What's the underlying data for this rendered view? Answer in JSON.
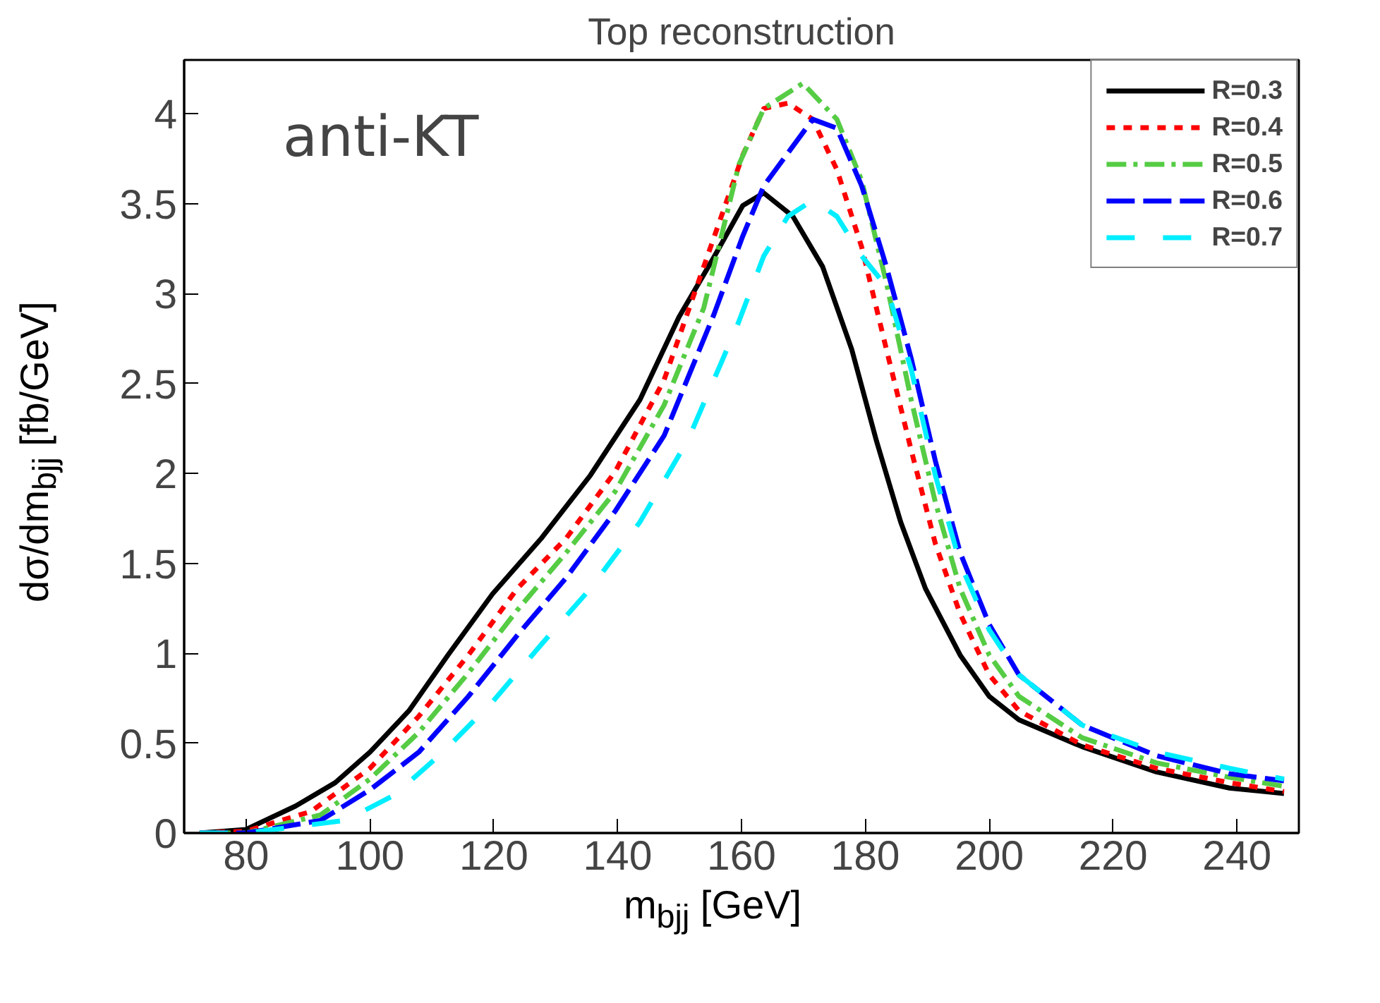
{
  "chart_data": {
    "type": "line",
    "title": "Top reconstruction",
    "xlabel": "m$_{bjj}$ [GeV]",
    "ylabel": "dσ/dm$_{bjj}$ [fb/GeV]",
    "annotations": [
      "anti-KT"
    ],
    "xlim": [
      70,
      250
    ],
    "ylim": [
      0,
      4.3
    ],
    "xticks": [
      80,
      100,
      120,
      140,
      160,
      180,
      200,
      220,
      240
    ],
    "yticks": [
      0,
      0.5,
      1,
      1.5,
      2,
      2.5,
      3,
      3.5,
      4
    ],
    "grid": false,
    "legend": "top right",
    "marker": "none",
    "series": [
      {
        "name": "R=0.3",
        "color": "#000000",
        "line_style": "solid",
        "x": [
          72.5,
          80,
          88,
          94.4,
          100,
          106.3,
          112.6,
          119.8,
          127.7,
          135.6,
          143.6,
          149.9,
          155.5,
          160.2,
          163.6,
          168.3,
          173.1,
          177.8,
          181.8,
          185.7,
          189.7,
          195.3,
          200,
          204.8,
          215,
          227,
          238.8,
          247.6
        ],
        "values": [
          0,
          0.02,
          0.15,
          0.28,
          0.45,
          0.68,
          0.99,
          1.33,
          1.64,
          1.99,
          2.41,
          2.87,
          3.2,
          3.49,
          3.56,
          3.43,
          3.15,
          2.69,
          2.18,
          1.73,
          1.36,
          0.99,
          0.76,
          0.63,
          0.48,
          0.34,
          0.25,
          0.22
        ]
      },
      {
        "name": "R=0.4",
        "color": "#ff0000",
        "line_style": "dotted",
        "x": [
          72.5,
          80,
          90.5,
          100,
          107.9,
          115.9,
          123.8,
          131.7,
          139.6,
          147.5,
          153.9,
          160.2,
          163.6,
          167.5,
          171.5,
          175.4,
          179.4,
          183.4,
          187.4,
          191.3,
          195.3,
          200,
          204.8,
          215,
          227,
          238.8,
          247.6
        ],
        "values": [
          0,
          0.01,
          0.12,
          0.36,
          0.65,
          0.99,
          1.36,
          1.64,
          2.01,
          2.52,
          3.15,
          3.77,
          4.03,
          4.06,
          3.97,
          3.69,
          3.26,
          2.69,
          2.13,
          1.61,
          1.22,
          0.88,
          0.68,
          0.49,
          0.36,
          0.28,
          0.23
        ]
      },
      {
        "name": "R=0.5",
        "color": "#55cc44",
        "line_style": "dashdot",
        "x": [
          72.5,
          80,
          92,
          100,
          107.9,
          115.9,
          123.8,
          131.7,
          139.6,
          147.5,
          153.9,
          159.6,
          163.6,
          169.9,
          175.4,
          179.4,
          183.4,
          187.4,
          191.3,
          195.3,
          200,
          204.8,
          215,
          227,
          238.8,
          247.6
        ],
        "values": [
          0,
          0,
          0.1,
          0.3,
          0.56,
          0.89,
          1.24,
          1.56,
          1.9,
          2.38,
          2.92,
          3.72,
          4.03,
          4.17,
          3.97,
          3.63,
          3.06,
          2.41,
          1.84,
          1.36,
          0.99,
          0.76,
          0.53,
          0.39,
          0.31,
          0.26
        ]
      },
      {
        "name": "R=0.6",
        "color": "#0000ff",
        "line_style": "dashed",
        "x": [
          72.5,
          80,
          92,
          100,
          107.9,
          115.9,
          123.8,
          131.7,
          139.6,
          147.5,
          155.5,
          160.2,
          163.6,
          171.5,
          175.4,
          179.4,
          183.4,
          187.4,
          191.3,
          195.3,
          200,
          204.8,
          215,
          227,
          238.8,
          247.6
        ],
        "values": [
          0,
          0,
          0.07,
          0.24,
          0.45,
          0.76,
          1.1,
          1.42,
          1.79,
          2.21,
          2.88,
          3.32,
          3.6,
          3.97,
          3.92,
          3.6,
          3.15,
          2.64,
          2.07,
          1.56,
          1.16,
          0.88,
          0.6,
          0.43,
          0.33,
          0.29
        ]
      },
      {
        "name": "R=0.7",
        "color": "#00eeff",
        "line_style": "longdash",
        "x": [
          72.5,
          80,
          96,
          103.9,
          111.8,
          119.8,
          127.7,
          135.6,
          143.6,
          151.4,
          159.4,
          163.6,
          167.5,
          171.5,
          175.4,
          179.4,
          183.4,
          187.4,
          191.3,
          195.3,
          200,
          204.8,
          215,
          227,
          238.8,
          247.6
        ],
        "values": [
          0,
          0,
          0.07,
          0.21,
          0.45,
          0.73,
          1.05,
          1.36,
          1.73,
          2.19,
          2.83,
          3.21,
          3.43,
          3.52,
          3.43,
          3.21,
          3.04,
          2.58,
          1.99,
          1.5,
          1.13,
          0.88,
          0.6,
          0.45,
          0.36,
          0.3
        ]
      }
    ]
  }
}
